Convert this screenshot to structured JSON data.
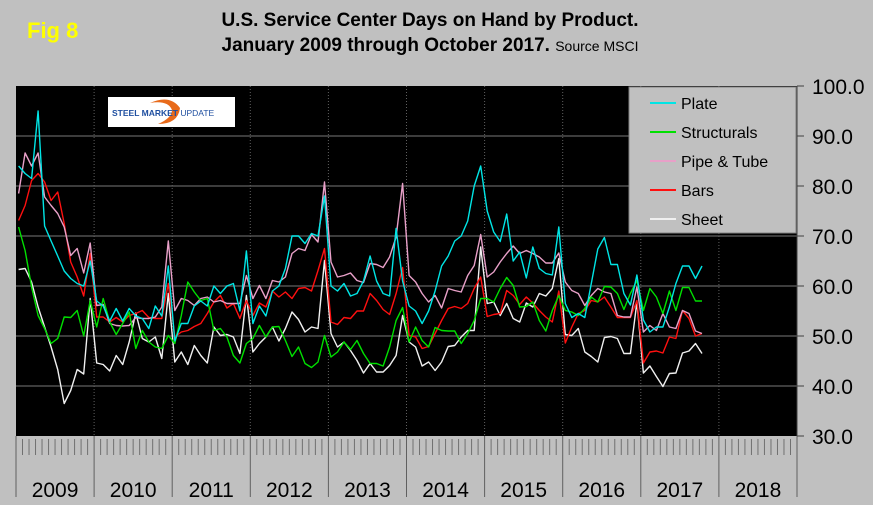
{
  "fig_label": "Fig 8",
  "logo_text": "STEEL MARKET UPDATE",
  "chart_data": {
    "type": "line",
    "title_line1": "U.S. Service Center Days on Hand by Product.",
    "title_line2": "January 2009 through October 2017.",
    "source": "Source MSCI",
    "x_start": "2009-01",
    "x_frequency": "monthly",
    "x_tick_labels": [
      "2009",
      "2010",
      "2011",
      "2012",
      "2013",
      "2014",
      "2015",
      "2016",
      "2017",
      "2018"
    ],
    "y_tick_labels": [
      "100.0",
      "90.0",
      "80.0",
      "70.0",
      "60.0",
      "50.0",
      "40.0",
      "30.0"
    ],
    "ylim": [
      30,
      100
    ],
    "grid": true,
    "legend_position": "top-right",
    "background": "#000000",
    "series": [
      {
        "name": "Plate",
        "color": "#00e5e5",
        "values": [
          84,
          82.5,
          81.5,
          95,
          72,
          69,
          66,
          63,
          61.5,
          60.5,
          60,
          65,
          57,
          56,
          53,
          55.5,
          53,
          55.5,
          54,
          53.5,
          51.5,
          56,
          54,
          64,
          49,
          52.5,
          52.5,
          56,
          57,
          56,
          60,
          58.5,
          60,
          60.5,
          55,
          67,
          52.5,
          56,
          54,
          59,
          60,
          63.5,
          70,
          70,
          68.5,
          70.5,
          70,
          78,
          60,
          59,
          60.5,
          58,
          58.5,
          61,
          66,
          61,
          58.5,
          58,
          71.5,
          61,
          56,
          55,
          52.5,
          55,
          59,
          64,
          66,
          69,
          70,
          73,
          80,
          84,
          75,
          70.8,
          68.9,
          74.4,
          65,
          66.8,
          61.6,
          67.8,
          63.5,
          62.5,
          62.2,
          71.8,
          56.5,
          53.7,
          54.5,
          53.7,
          60.5,
          67.4,
          69.7,
          64.3,
          64.3,
          58.5,
          56.2,
          62.2,
          53.2,
          50.8,
          51.8,
          51.8,
          55.8,
          60.5,
          64,
          64,
          61.5,
          64
        ]
      },
      {
        "name": "Structurals",
        "color": "#00e000",
        "values": [
          71.8,
          67.1,
          59.8,
          54.1,
          51.5,
          48.5,
          49.5,
          53.8,
          53.7,
          55.1,
          50,
          57.1,
          51.8,
          57.5,
          52.8,
          50.3,
          52.5,
          54.8,
          47.5,
          51.1,
          48.8,
          47.8,
          47.5,
          50.1,
          48.5,
          54.1,
          60.8,
          58.8,
          57.1,
          57.5,
          51.1,
          51.5,
          49.8,
          46.1,
          44.6,
          48.5,
          49.5,
          52.1,
          49.8,
          51.8,
          51.9,
          49.1,
          45.9,
          47.8,
          44.5,
          43.7,
          44.8,
          50.1,
          45.8,
          46.8,
          48.8,
          47.3,
          49.1,
          46.5,
          44.5,
          44.5,
          44,
          47.8,
          53.1,
          55.7,
          48.8,
          51.8,
          49.1,
          47.8,
          51.7,
          51.1,
          51,
          51,
          48.5,
          50.5,
          53.1,
          57.5,
          57.5,
          56.8,
          59.5,
          61.7,
          60.1,
          55.8,
          55.9,
          56.8,
          53.1,
          51,
          55.1,
          58.1,
          55.1,
          54.8,
          54.1,
          55.5,
          57.8,
          56.8,
          59.9,
          59.8,
          58.5,
          55.3,
          58.5,
          61.1,
          55.1,
          59.5,
          57.8,
          54.5,
          59,
          55.1,
          59.7,
          59.7,
          57,
          57
        ]
      },
      {
        "name": "Pipe & Tube",
        "color": "#e8a0c8",
        "values": [
          78.5,
          86.6,
          84,
          86.6,
          77.8,
          76.1,
          74.5,
          71.8,
          66.1,
          67.5,
          62.6,
          68.6,
          56.1,
          56.3,
          52.5,
          52.1,
          52,
          52.1,
          53.7,
          53.5,
          53.5,
          53.8,
          55.8,
          69,
          55.1,
          57.5,
          57.1,
          56.1,
          57.5,
          57.8,
          56.8,
          57.1,
          56.5,
          56.5,
          56.5,
          62.1,
          57.5,
          60.1,
          57.5,
          61.1,
          60.8,
          61.8,
          66.5,
          67.5,
          67.1,
          70.3,
          68.8,
          80.8,
          64.8,
          61.8,
          62.1,
          62.6,
          61.1,
          60.7,
          64.5,
          64.3,
          63.7,
          65.8,
          69.8,
          80.5,
          62.1,
          60.8,
          58.5,
          56.8,
          58.1,
          55.6,
          59.5,
          59.1,
          58.8,
          62.1,
          64.1,
          70.3,
          61.8,
          62.8,
          64.8,
          66.5,
          68,
          66.5,
          67.1,
          66.5,
          65.8,
          64.6,
          64.6,
          66.6,
          60.8,
          59.1,
          58.5,
          56.1,
          58.1,
          59.5,
          58.8,
          58.5,
          54.1,
          53.8,
          53.8,
          59.8,
          50.8,
          52.1,
          51.1,
          54.5,
          51.8,
          51.5,
          55.1,
          54.5,
          51,
          50.5
        ]
      },
      {
        "name": "Bars",
        "color": "#ff1010",
        "values": [
          73.1,
          76.1,
          81.1,
          82.5,
          80.8,
          77.1,
          78.8,
          72.5,
          64.8,
          61.8,
          58,
          66.5,
          53.8,
          53.8,
          52.8,
          53.7,
          52.8,
          54.1,
          54.5,
          55.1,
          53.7,
          53.5,
          53.5,
          60.5,
          49.8,
          50.8,
          51.1,
          51.9,
          52.5,
          54.5,
          56.8,
          58.1,
          55.6,
          56.5,
          53.5,
          57.1,
          54.1,
          56.6,
          55.8,
          59,
          57.8,
          58.8,
          57.5,
          59.5,
          59.7,
          59,
          63.1,
          67.5,
          52.8,
          52.3,
          53.7,
          53.5,
          55,
          55,
          58.5,
          57.1,
          55.3,
          54.3,
          58.5,
          63.7,
          50.1,
          49.8,
          47.5,
          47.9,
          50.5,
          53.1,
          55.5,
          55.9,
          55.5,
          56.5,
          59.5,
          61.8,
          53.9,
          54.3,
          54.5,
          59.1,
          58.1,
          56.3,
          57.8,
          56.6,
          55.1,
          53.8,
          52.8,
          59,
          48.6,
          51.8,
          54.5,
          55.1,
          57.1,
          56.8,
          57.8,
          55.8,
          53.7,
          53.7,
          53.7,
          57.1,
          44.6,
          46.8,
          47,
          46.6,
          49.8,
          49.5,
          55.1,
          53.5,
          50,
          50.5
        ]
      },
      {
        "name": "Sheet",
        "color": "#f0f0f0",
        "values": [
          63.3,
          63.5,
          60.8,
          55.8,
          51.8,
          47.8,
          43.3,
          36.5,
          39.1,
          43.3,
          42.4,
          57.5,
          44.6,
          44.3,
          43,
          46.1,
          44.3,
          48.8,
          54.6,
          49.5,
          48.8,
          49.8,
          45.5,
          58.5,
          44.8,
          46.8,
          44.3,
          48.1,
          46.1,
          44.6,
          51.8,
          50.1,
          50.3,
          49.8,
          46.5,
          58.1,
          46.8,
          48.5,
          49.8,
          51.8,
          49,
          51.5,
          54.8,
          53.3,
          50.8,
          51.8,
          51.5,
          65.1,
          50.5,
          47.8,
          48.8,
          47.1,
          45.1,
          42.6,
          44.5,
          42.8,
          42.8,
          44.1,
          46.1,
          54.1,
          48.8,
          47.8,
          44,
          44.8,
          43.1,
          44.8,
          47.9,
          48.1,
          49.8,
          51.1,
          51.1,
          67.8,
          56.5,
          56.8,
          54.1,
          56.5,
          53.5,
          52.8,
          56.6,
          55.8,
          58.5,
          58,
          59.5,
          65.5,
          50.3,
          50.1,
          51.5,
          46.8,
          45.9,
          44.8,
          49.7,
          49.9,
          49.5,
          46.5,
          46.5,
          56.8,
          42.6,
          44,
          41.9,
          39.9,
          42.5,
          42.6,
          46.6,
          47,
          48.5,
          46.5
        ]
      }
    ]
  }
}
